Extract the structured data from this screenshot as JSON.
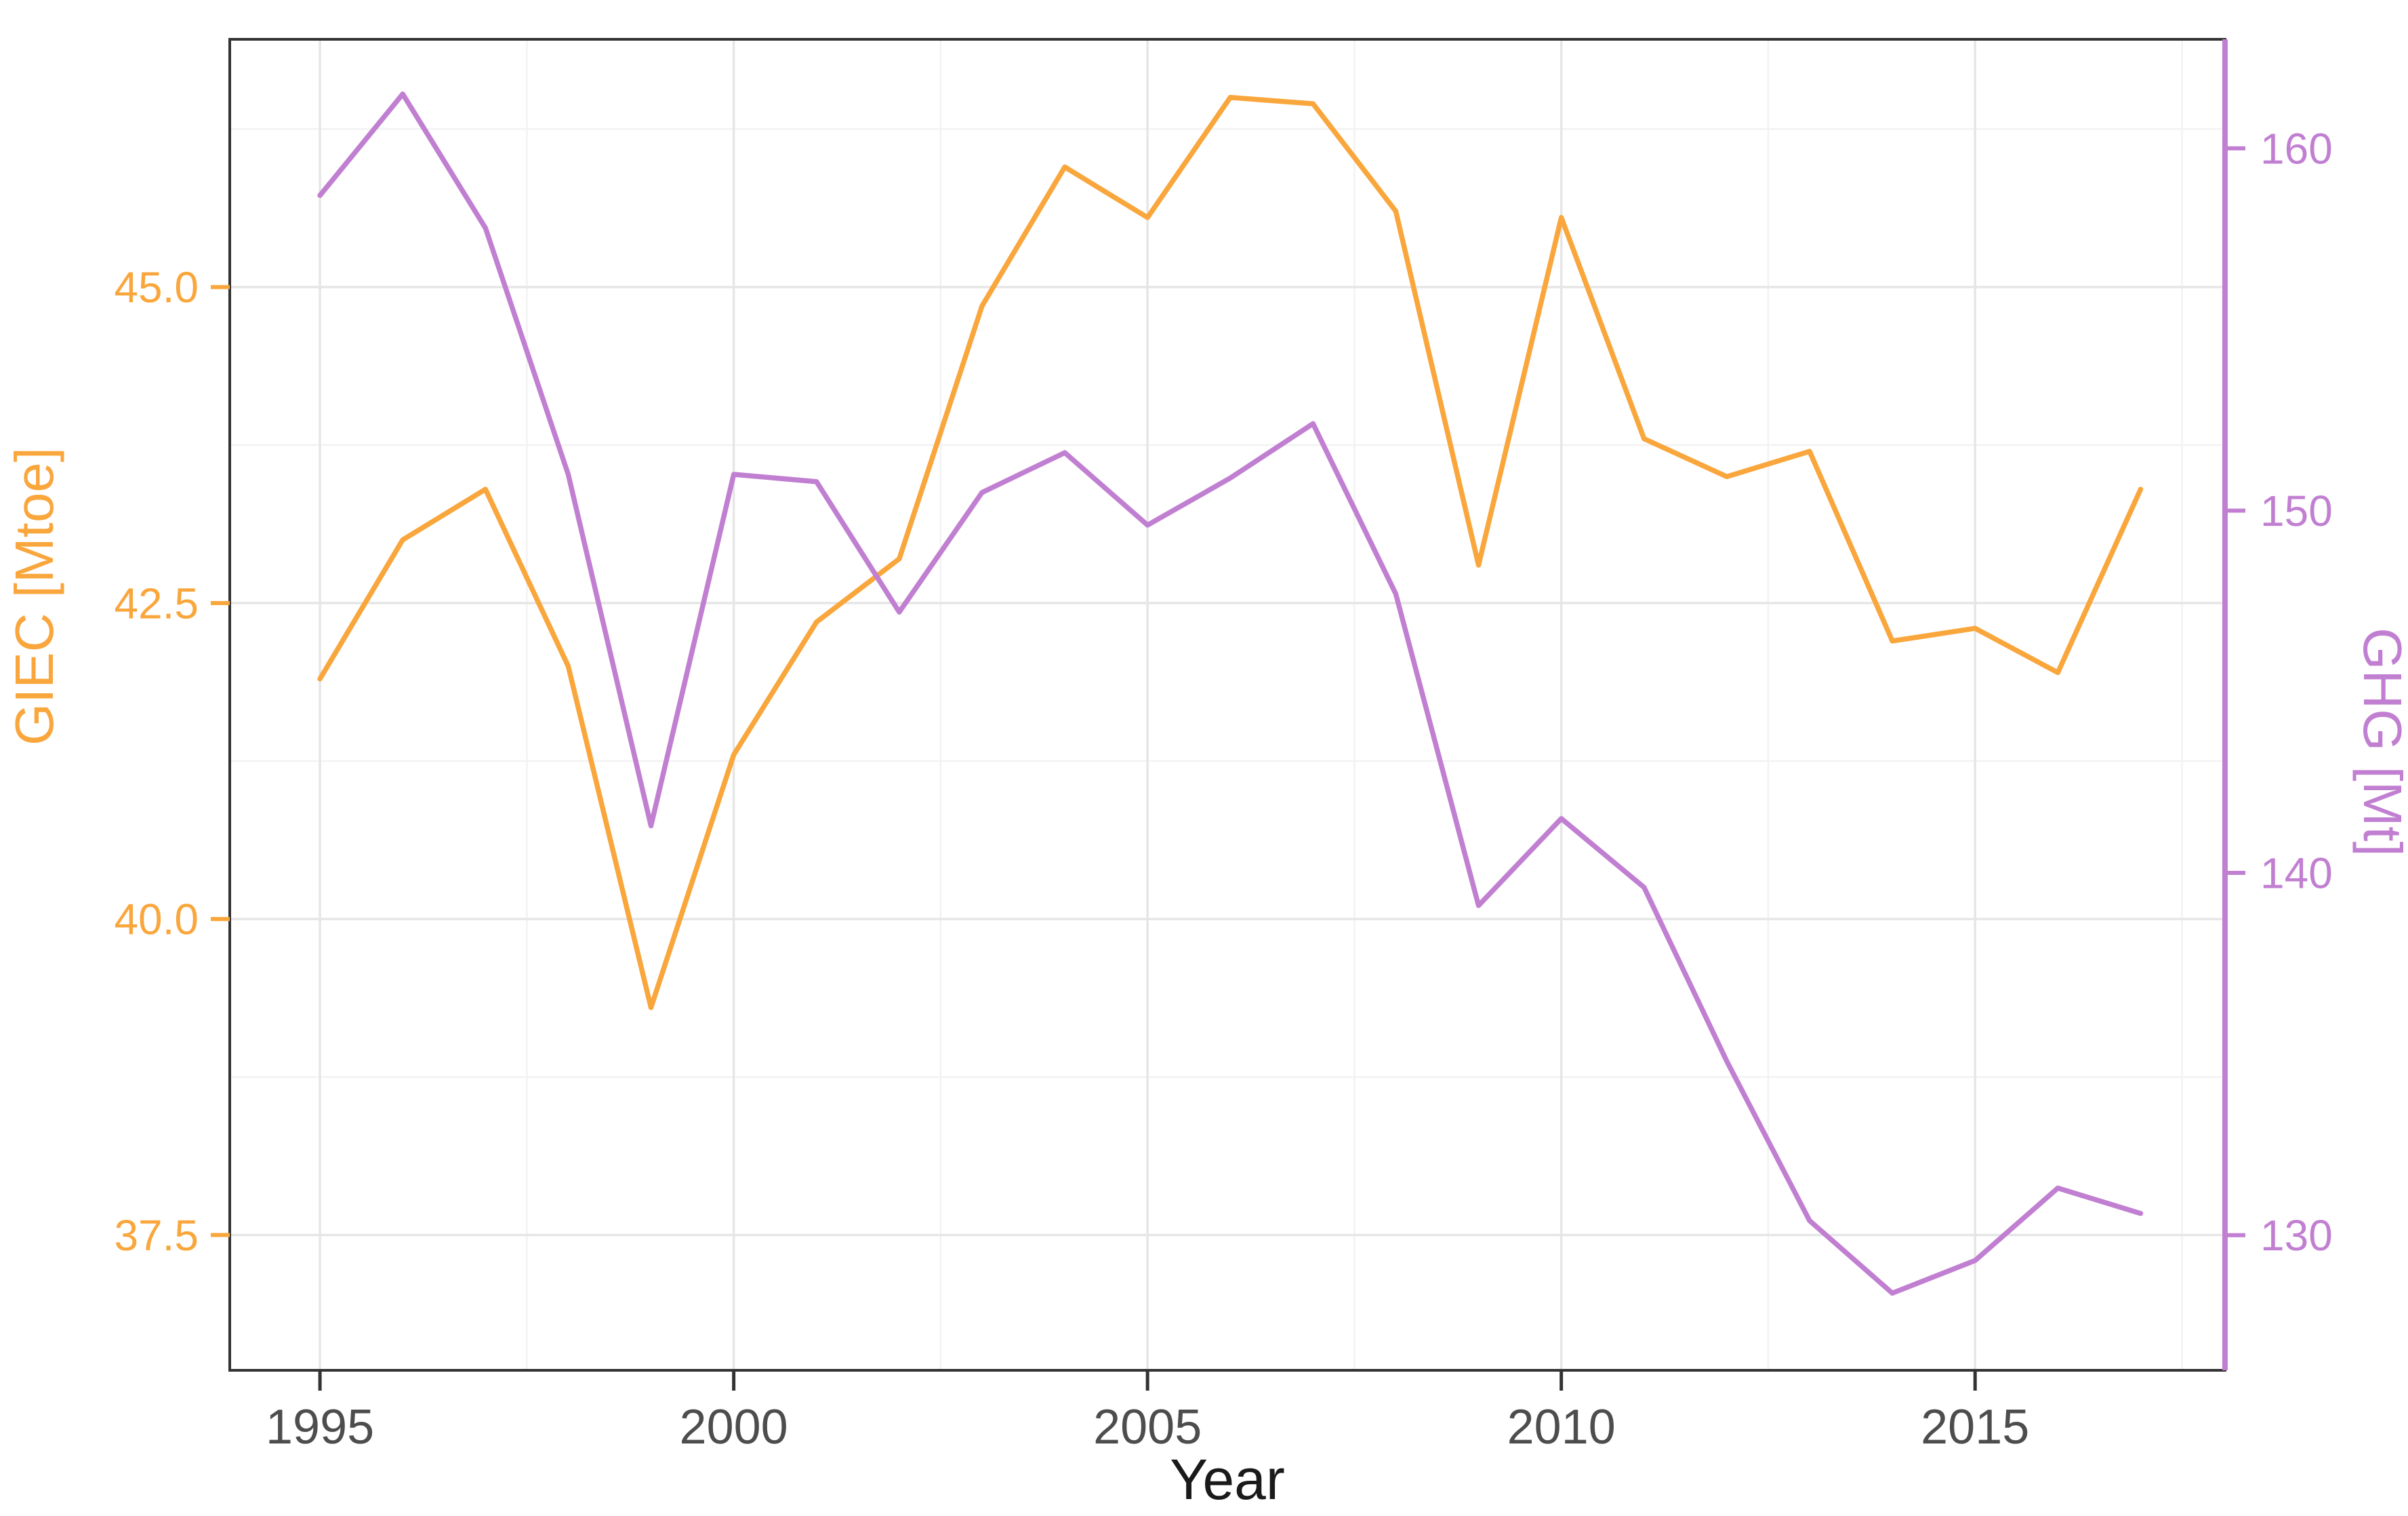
{
  "chart_data": {
    "type": "line",
    "title": "",
    "xlabel": "Year",
    "grid": true,
    "legend_position": "none",
    "x": [
      1995,
      1996,
      1997,
      1998,
      1999,
      2000,
      2001,
      2002,
      2003,
      2004,
      2005,
      2006,
      2007,
      2008,
      2009,
      2010,
      2011,
      2012,
      2013,
      2014,
      2015,
      2016,
      2017
    ],
    "series": [
      {
        "name": "GIEC [Mtoe]",
        "axis": "left",
        "color": "#F9A63C",
        "values": [
          41.9,
          43.0,
          43.4,
          42.0,
          39.3,
          41.3,
          42.35,
          42.85,
          44.85,
          45.95,
          45.55,
          46.5,
          46.45,
          45.6,
          42.8,
          45.55,
          43.8,
          43.5,
          43.7,
          42.2,
          42.3,
          41.95,
          43.4
        ]
      },
      {
        "name": "GHG [Mt]",
        "axis": "right",
        "color": "#C17FD1",
        "values": [
          158.7,
          161.5,
          157.8,
          151.0,
          141.3,
          151.0,
          150.8,
          147.2,
          150.5,
          151.6,
          149.6,
          150.9,
          152.4,
          147.7,
          139.1,
          141.5,
          139.6,
          134.8,
          130.4,
          128.4,
          129.3,
          131.3,
          130.6
        ]
      }
    ],
    "axes": {
      "x": {
        "label": "Year",
        "range": [
          1993.91,
          2018.02
        ],
        "major_ticks": [
          1995,
          2000,
          2005,
          2010,
          2015
        ],
        "major_tick_labels": [
          "1995",
          "2000",
          "2005",
          "2010",
          "2015"
        ],
        "minor_ticks": [
          1997.5,
          2002.5,
          2007.5,
          2012.5,
          2017.5
        ],
        "text_color": "#4D4D4D",
        "title_color": "#1A1A1A"
      },
      "left": {
        "label": "GIEC [Mtoe]",
        "range": [
          36.43,
          46.96
        ],
        "major_ticks": [
          37.5,
          40.0,
          42.5,
          45.0
        ],
        "major_tick_labels": [
          "37.5",
          "40.0",
          "42.5",
          "45.0"
        ],
        "minor_ticks": [
          38.75,
          41.25,
          43.75,
          46.25
        ],
        "color": "#F9A63C"
      },
      "right": {
        "label": "GHG [Mt]",
        "range": [
          126.27,
          163.01
        ],
        "major_ticks": [
          130,
          140,
          150,
          160
        ],
        "major_tick_labels": [
          "130",
          "140",
          "150",
          "160"
        ],
        "color": "#C17FD1"
      }
    },
    "style": {
      "panel_background": "#FFFFFF",
      "panel_border_color": "#333333",
      "grid_major_color": "#E6E6E6",
      "grid_minor_color": "#F2F2F2",
      "right_axis_line_color": "#C17FD1"
    }
  }
}
